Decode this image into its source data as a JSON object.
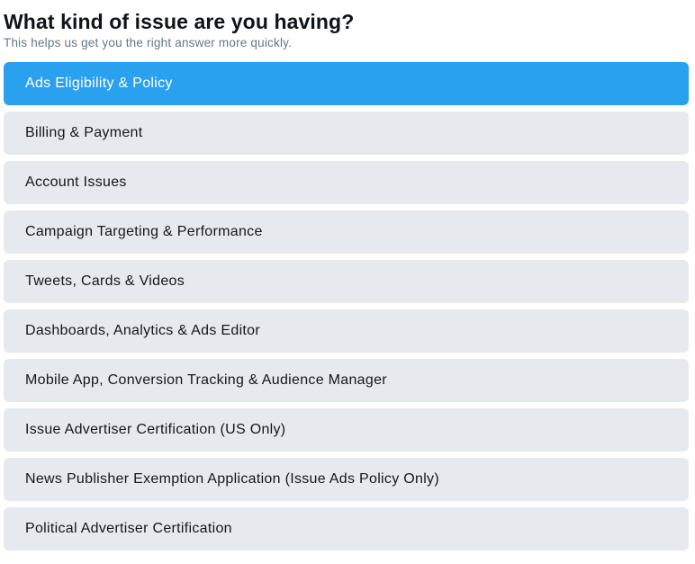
{
  "header": {
    "title": "What kind of issue are you having?",
    "subtitle": "This helps us get you the right answer more quickly."
  },
  "options": [
    {
      "label": "Ads Eligibility & Policy",
      "selected": true
    },
    {
      "label": "Billing & Payment",
      "selected": false
    },
    {
      "label": "Account Issues",
      "selected": false
    },
    {
      "label": "Campaign Targeting & Performance",
      "selected": false
    },
    {
      "label": "Tweets, Cards & Videos",
      "selected": false
    },
    {
      "label": "Dashboards, Analytics & Ads Editor",
      "selected": false
    },
    {
      "label": "Mobile App, Conversion Tracking & Audience Manager",
      "selected": false
    },
    {
      "label": "Issue Advertiser Certification (US Only)",
      "selected": false
    },
    {
      "label": "News Publisher Exemption Application (Issue Ads Policy Only)",
      "selected": false
    },
    {
      "label": "Political Advertiser Certification",
      "selected": false
    }
  ],
  "colors": {
    "selected_background": "#2aa1ee",
    "option_background": "#e6e9ee",
    "subtitle_text": "#657786"
  }
}
